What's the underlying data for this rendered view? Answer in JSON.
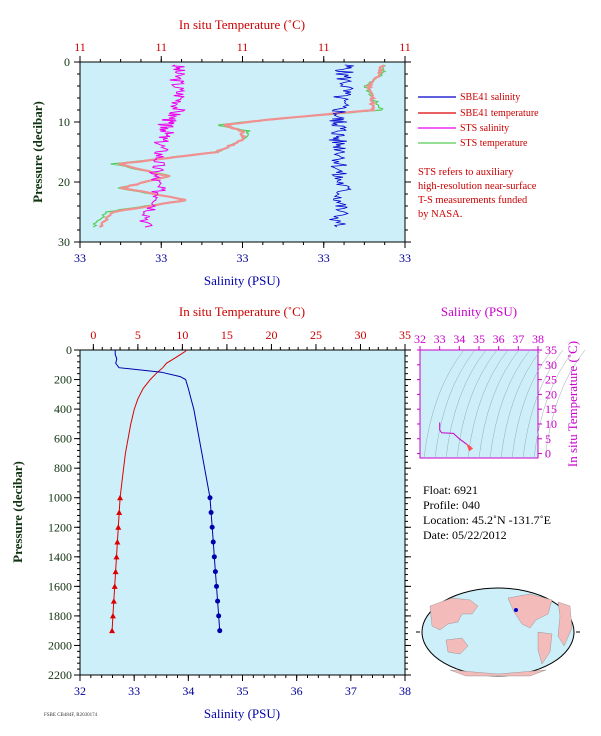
{
  "chart_data": [
    {
      "type": "line",
      "title": "In situ Temperature (˚C)",
      "xlabel": "Salinity (PSU)",
      "ylabel": "Pressure (decibar)",
      "top_axis_ticks": [
        "11",
        "11",
        "11",
        "11",
        "11"
      ],
      "bottom_axis_ticks": [
        "33",
        "33",
        "33",
        "33",
        "33"
      ],
      "y_ticks": [
        "0",
        "10",
        "20",
        "30"
      ],
      "ylim": [
        30,
        0
      ],
      "legend": [
        {
          "name": "SBE41 salinity",
          "color": "#0000cc"
        },
        {
          "name": "SBE41 temperature",
          "color": "#dd0000"
        },
        {
          "name": "STS salinity",
          "color": "#ee00ee"
        },
        {
          "name": "STS temperature",
          "color": "#55cc55"
        }
      ],
      "note": [
        "STS refers to auxiliary",
        "high-resolution near-surface",
        "T-S measurements funded",
        "by NASA."
      ],
      "series_pressure": [
        0.5,
        2,
        4,
        6,
        8,
        9.5,
        10.5,
        11.5,
        13,
        15,
        17,
        19,
        21,
        23,
        25,
        27.5
      ],
      "sts_temperature": [
        0.938,
        0.93,
        0.88,
        0.9,
        0.93,
        0.6,
        0.42,
        0.52,
        0.5,
        0.42,
        0.1,
        0.28,
        0.12,
        0.33,
        0.08,
        0.04
      ],
      "sbe41_temperature": [
        0.93,
        0.92,
        0.89,
        0.9,
        0.9,
        0.6,
        0.44,
        0.5,
        0.5,
        0.42,
        0.12,
        0.27,
        0.13,
        0.33,
        0.1,
        0.06
      ],
      "sts_salinity": [
        0.3,
        0.3,
        0.3,
        0.31,
        0.3,
        0.28,
        0.26,
        0.27,
        0.25,
        0.25,
        0.24,
        0.23,
        0.24,
        0.25,
        0.22,
        0.2
      ],
      "sbe41_salinity": [
        0.82,
        0.81,
        0.82,
        0.8,
        0.8,
        0.79,
        0.8,
        0.8,
        0.79,
        0.81,
        0.8,
        0.79,
        0.81,
        0.8,
        0.8,
        0.79
      ]
    },
    {
      "type": "line",
      "title": "In situ Temperature (˚C)",
      "xlabel": "Salinity (PSU)",
      "ylabel": "Pressure (decibar)",
      "top_axis_ticks": [
        "0",
        "5",
        "10",
        "15",
        "20",
        "25",
        "30",
        "35"
      ],
      "bottom_axis_ticks": [
        "32",
        "33",
        "34",
        "35",
        "36",
        "37",
        "38"
      ],
      "y_ticks": [
        "0",
        "200",
        "400",
        "600",
        "800",
        "1000",
        "1200",
        "1400",
        "1600",
        "1800",
        "2000",
        "2200"
      ],
      "temp_lim": [
        -1.5,
        35
      ],
      "sal_lim": [
        32,
        38
      ],
      "ylim": [
        2200,
        0
      ],
      "temperature": {
        "pressure": [
          0,
          10,
          30,
          60,
          90,
          120,
          150,
          200,
          260,
          330,
          400,
          500,
          600,
          700,
          800,
          900,
          1000,
          1100,
          1200,
          1300,
          1400,
          1500,
          1600,
          1700,
          1800,
          1900
        ],
        "values": [
          10.5,
          10.3,
          9.8,
          9.0,
          8.2,
          7.8,
          7.2,
          6.4,
          5.6,
          5.0,
          4.6,
          4.2,
          3.9,
          3.6,
          3.4,
          3.2,
          3.0,
          2.9,
          2.8,
          2.7,
          2.6,
          2.5,
          2.4,
          2.3,
          2.2,
          2.1
        ]
      },
      "salinity": {
        "pressure": [
          0,
          30,
          60,
          90,
          120,
          150,
          180,
          200,
          260,
          330,
          400,
          500,
          600,
          700,
          800,
          900,
          1000,
          1100,
          1200,
          1300,
          1400,
          1500,
          1600,
          1700,
          1800,
          1900
        ],
        "values": [
          32.65,
          32.65,
          32.68,
          32.66,
          32.72,
          33.5,
          33.85,
          33.95,
          34.0,
          34.05,
          34.1,
          34.15,
          34.2,
          34.25,
          34.3,
          34.35,
          34.4,
          34.42,
          34.44,
          34.46,
          34.48,
          34.5,
          34.52,
          34.54,
          34.56,
          34.58
        ]
      },
      "markers_from_pressure": 1000
    },
    {
      "type": "line",
      "title": "Salinity (PSU)",
      "ylabel": "In situ Temperature (˚C)",
      "top_axis_ticks": [
        "32",
        "33",
        "34",
        "35",
        "36",
        "37",
        "38"
      ],
      "y_ticks": [
        "0",
        "5",
        "10",
        "15",
        "20",
        "25",
        "30",
        "35"
      ],
      "xlim": [
        32,
        38
      ],
      "ylim": [
        -1.5,
        35
      ],
      "ts_salinity": [
        33.0,
        33.0,
        33.1,
        33.7,
        34.0,
        34.2,
        34.4,
        34.6
      ],
      "ts_temperature": [
        10.5,
        8.0,
        7.0,
        6.8,
        5.0,
        4.0,
        3.0,
        2.1
      ]
    }
  ],
  "info": {
    "float": "Float:  6921",
    "profile": "Profile:  040",
    "location": "Location:  45.2˚N  -131.7˚E",
    "date": "Date:  05/22/2012"
  },
  "footer": "FSBE CB484F, R2030174"
}
